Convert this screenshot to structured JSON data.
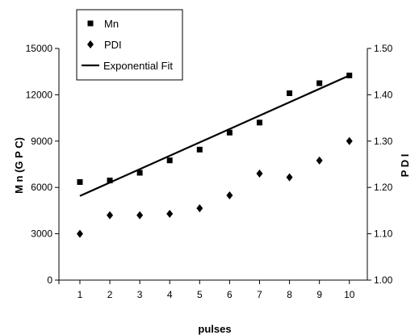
{
  "chart_data": {
    "type": "scatter",
    "xlabel": "pulses",
    "ylabel_left": "M n (G P C)",
    "ylabel_right": "P D I",
    "x_ticks": [
      1,
      2,
      3,
      4,
      5,
      6,
      7,
      8,
      9,
      10
    ],
    "x_range": [
      0.3,
      10.6
    ],
    "y_left": {
      "min": 0,
      "max": 15000,
      "ticks": [
        0,
        3000,
        6000,
        9000,
        12000,
        15000
      ]
    },
    "y_right": {
      "min": 1.0,
      "max": 1.5,
      "ticks": [
        "1.00",
        "1.10",
        "1.20",
        "1.30",
        "1.40",
        "1.50"
      ]
    },
    "legend_position": "top-left",
    "series": [
      {
        "name": "Mn",
        "axis": "left",
        "marker": "square",
        "x": [
          1,
          2,
          3,
          4,
          5,
          6,
          7,
          8,
          9,
          10
        ],
        "y": [
          6350,
          6450,
          6950,
          7750,
          8450,
          9550,
          10200,
          12100,
          12750,
          13250
        ]
      },
      {
        "name": "PDI",
        "axis": "right",
        "marker": "diamond",
        "x": [
          1,
          2,
          3,
          4,
          5,
          6,
          7,
          8,
          9,
          10
        ],
        "y": [
          1.1,
          1.14,
          1.14,
          1.143,
          1.155,
          1.183,
          1.23,
          1.222,
          1.258,
          1.3
        ]
      },
      {
        "name": "Exponential Fit",
        "axis": "left",
        "marker": "line",
        "x": [
          1,
          10
        ],
        "y": [
          5450,
          13250
        ]
      }
    ],
    "colors": {
      "marks": "#000000",
      "background": "#ffffff"
    }
  }
}
